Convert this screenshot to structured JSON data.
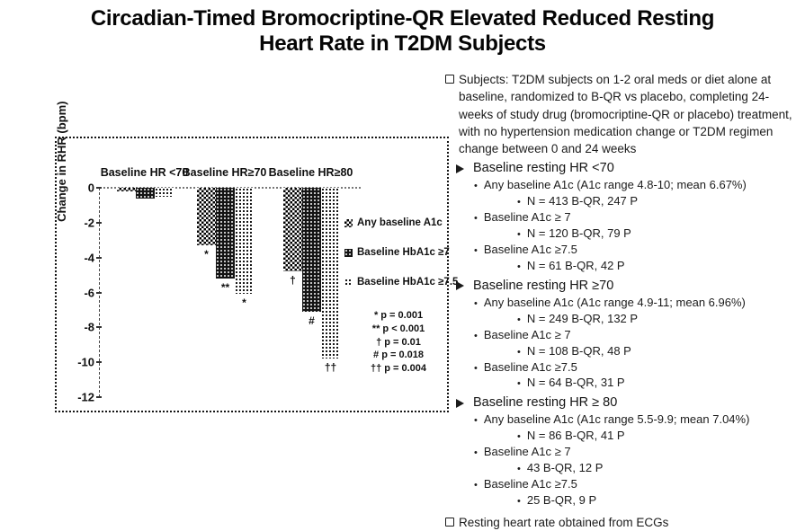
{
  "title": {
    "line1": "Circadian-Timed Bromocriptine-QR Elevated Reduced Resting",
    "line2": "Heart Rate in T2DM Subjects"
  },
  "chart_data": {
    "type": "bar",
    "ylabel": "Change in RHR  (bpm)",
    "ylim": [
      0,
      -12
    ],
    "yticks": [
      0,
      -2,
      -4,
      -6,
      -8,
      -10,
      -12
    ],
    "grid": false,
    "legend_position": "right-inside",
    "categories": [
      "Baseline HR <70",
      "Baseline HR≥70",
      "Baseline HR≥80"
    ],
    "series": [
      {
        "name": "Any baseline A1c",
        "values": [
          -0.2,
          -3.3,
          -4.8
        ],
        "markers": [
          "",
          "*",
          "†"
        ]
      },
      {
        "name": "Baseline HbA1c ≥7",
        "values": [
          -0.6,
          -5.2,
          -7.1
        ],
        "markers": [
          "",
          "**",
          "#"
        ]
      },
      {
        "name": "Baseline HbA1c ≥7.5",
        "values": [
          -0.5,
          -6.1,
          -9.8
        ],
        "markers": [
          "",
          "*",
          "††"
        ]
      }
    ],
    "p_values": [
      "* p = 0.001",
      "** p < 0.001",
      "† p = 0.01",
      "# p = 0.018",
      "†† p = 0.004"
    ],
    "colors": {
      "ink": "#111111",
      "background": "#ffffff"
    }
  },
  "notes": {
    "subjects": "Subjects: T2DM subjects on 1-2 oral meds or diet alone at baseline, randomized to B-QR vs placebo, completing 24-weeks of study drug (bromocriptine-QR or placebo)  treatment, with no hypertension medication change or T2DM regimen change between 0 and 24 weeks",
    "sections": [
      {
        "header": "Baseline resting HR <70",
        "items": [
          {
            "text": "Any baseline A1c (A1c range 4.8-10; mean 6.67%)",
            "sub": "N = 413 B-QR, 247 P"
          },
          {
            "text": "Baseline A1c ≥ 7",
            "sub": "N = 120 B-QR, 79 P"
          },
          {
            "text": "Baseline A1c ≥7.5",
            "sub": "N = 61 B-QR, 42 P"
          }
        ]
      },
      {
        "header": "Baseline resting HR ≥70",
        "items": [
          {
            "text": "Any baseline A1c (A1c range 4.9-11; mean 6.96%)",
            "sub": "N = 249 B-QR, 132 P"
          },
          {
            "text": "Baseline A1c ≥ 7",
            "sub": "N = 108 B-QR, 48 P"
          },
          {
            "text": "Baseline A1c ≥7.5",
            "sub": "N = 64 B-QR, 31 P"
          }
        ]
      },
      {
        "header": "Baseline resting HR ≥ 80",
        "items": [
          {
            "text": "Any baseline A1c (A1c range 5.5-9.9; mean 7.04%)",
            "sub": "N = 86 B-QR, 41 P"
          },
          {
            "text": "Baseline A1c ≥ 7",
            "sub": "43 B-QR, 12 P"
          },
          {
            "text": "Baseline A1c ≥7.5",
            "sub": "25 B-QR, 9 P"
          }
        ]
      }
    ],
    "footer": "Resting heart rate obtained from ECGs"
  },
  "icons": {
    "checkbox_bullet": "open-square",
    "section_bullet": "right-arrowhead",
    "item_bullet": "•"
  }
}
